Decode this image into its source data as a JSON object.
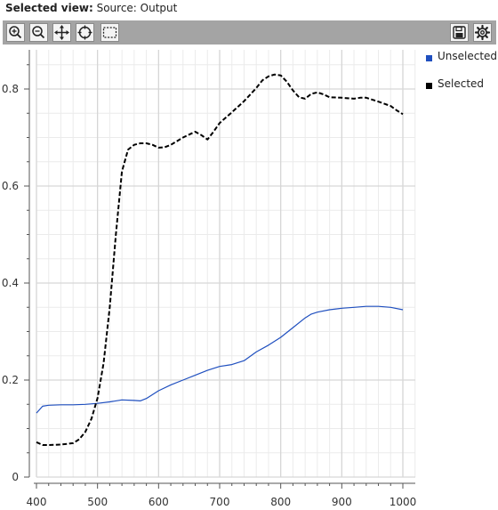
{
  "header": {
    "label": "Selected view:",
    "value": "Source: Output"
  },
  "toolbar": {
    "left_icons": [
      "zoom-in-icon",
      "zoom-out-icon",
      "pan-icon",
      "reset-view-icon",
      "box-select-icon"
    ],
    "right_icons": [
      "save-icon",
      "settings-icon"
    ]
  },
  "colors": {
    "unselected": "#1f4fbf",
    "selected": "#000000",
    "grid_major": "#d6d6d6",
    "grid_minor": "#ebebeb",
    "toolbar": "#a4a4a4"
  },
  "chart_data": {
    "type": "line",
    "title": "",
    "xlabel": "",
    "ylabel": "",
    "xlim": [
      400,
      1000
    ],
    "ylim": [
      0,
      0.87
    ],
    "x_ticks": [
      "400",
      "500",
      "600",
      "700",
      "800",
      "900",
      "1000"
    ],
    "y_ticks": [
      "0",
      "0.2",
      "0.4",
      "0.6",
      "0.8"
    ],
    "grid": true,
    "legend_position": "right",
    "series": [
      {
        "name": "Unselected",
        "style": "solid",
        "color": "#1f4fbf",
        "x": [
          400,
          410,
          420,
          440,
          460,
          480,
          500,
          520,
          540,
          560,
          570,
          580,
          600,
          620,
          640,
          660,
          680,
          700,
          720,
          740,
          760,
          780,
          800,
          820,
          840,
          850,
          860,
          880,
          900,
          920,
          940,
          960,
          980,
          1000
        ],
        "y": [
          0.132,
          0.146,
          0.148,
          0.149,
          0.149,
          0.15,
          0.152,
          0.155,
          0.159,
          0.158,
          0.157,
          0.162,
          0.178,
          0.19,
          0.2,
          0.21,
          0.22,
          0.228,
          0.232,
          0.24,
          0.258,
          0.272,
          0.288,
          0.308,
          0.328,
          0.336,
          0.34,
          0.345,
          0.348,
          0.35,
          0.352,
          0.352,
          0.35,
          0.345
        ]
      },
      {
        "name": "Selected",
        "style": "dashed",
        "color": "#000000",
        "x": [
          400,
          410,
          420,
          440,
          460,
          470,
          480,
          490,
          500,
          510,
          520,
          530,
          540,
          550,
          560,
          570,
          580,
          590,
          600,
          610,
          620,
          640,
          660,
          670,
          680,
          690,
          700,
          720,
          740,
          760,
          770,
          780,
          790,
          800,
          810,
          820,
          830,
          840,
          850,
          860,
          870,
          880,
          900,
          920,
          930,
          940,
          960,
          980,
          990,
          1000
        ],
        "y": [
          0.072,
          0.066,
          0.066,
          0.067,
          0.07,
          0.078,
          0.093,
          0.12,
          0.163,
          0.235,
          0.35,
          0.5,
          0.63,
          0.675,
          0.685,
          0.688,
          0.688,
          0.685,
          0.679,
          0.68,
          0.685,
          0.7,
          0.712,
          0.705,
          0.696,
          0.712,
          0.73,
          0.752,
          0.775,
          0.802,
          0.818,
          0.826,
          0.83,
          0.828,
          0.815,
          0.797,
          0.783,
          0.78,
          0.79,
          0.793,
          0.789,
          0.783,
          0.782,
          0.78,
          0.782,
          0.782,
          0.774,
          0.765,
          0.756,
          0.748
        ]
      }
    ]
  }
}
